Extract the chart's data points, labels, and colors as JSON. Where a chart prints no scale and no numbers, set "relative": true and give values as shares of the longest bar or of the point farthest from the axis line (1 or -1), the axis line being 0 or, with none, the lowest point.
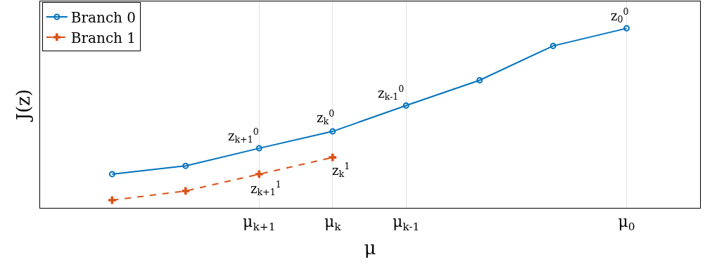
{
  "chart_data": {
    "type": "line",
    "relative": true,
    "xlabel": "μ",
    "ylabel": "J(z)",
    "categories": [
      null,
      null,
      "μ$_{k+1}$",
      "μ$_{k}$",
      "μ$_{k-1}$",
      null,
      null,
      "μ$_{0}$"
    ],
    "series": [
      {
        "name": "Branch 0",
        "color": "#0072bd",
        "marker": "circle",
        "line_style": "solid",
        "values": [
          0.188,
          0.234,
          0.332,
          0.426,
          0.57,
          0.711,
          0.902,
          1
        ]
      },
      {
        "name": "Branch 1",
        "color": "#d95319",
        "marker": "cross",
        "line_style": "dashed",
        "values": [
          0.043,
          0.094,
          0.188,
          0.281,
          null,
          null,
          null,
          null
        ]
      }
    ],
    "annotations": [
      {
        "text": "z$_{0}$$^{0}$",
        "x": "μ$_{0}$",
        "y": 1
      },
      {
        "text": "z$_{k-1}$$^{0}$",
        "x": "μ$_{k-1}$",
        "y": 0.57
      },
      {
        "text": "z$_{k}$$^{0}$",
        "x": "μ$_{k}$",
        "y": 0.426
      },
      {
        "text": "z$_{k+1}$$^{0}$",
        "x": "μ$_{k+1}$",
        "y": 0.332
      },
      {
        "text": "z$_{k}$$^{1}$",
        "x": "μ$_{k}$",
        "y": 0.281
      },
      {
        "text": "z$_{k+1}$$^{1}$",
        "x": "μ$_{k+1}$",
        "y": 0.188
      }
    ],
    "grid": "x",
    "legend": "top left",
    "tick_labels": "x"
  }
}
